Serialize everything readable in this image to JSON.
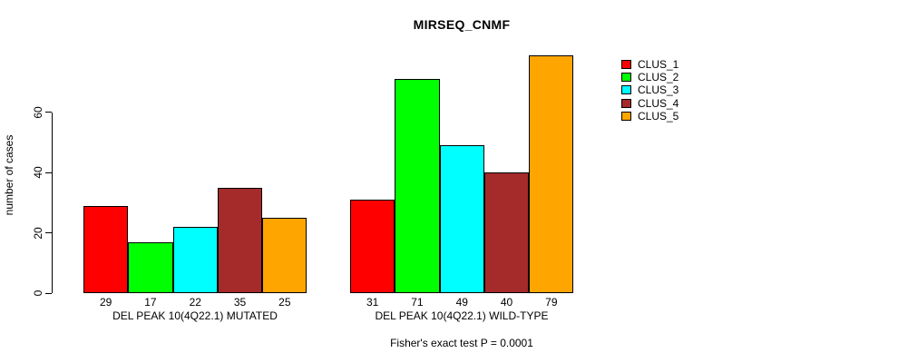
{
  "title": "MIRSEQ_CNMF",
  "chart_data": {
    "type": "bar",
    "title": "MIRSEQ_CNMF",
    "xlabel": "",
    "ylabel": "number of cases",
    "yticks": [
      0,
      20,
      40,
      60
    ],
    "ylim": [
      0,
      79
    ],
    "grid": false,
    "legend_position": "right",
    "categories": [
      "DEL PEAK 10(4Q22.1) MUTATED",
      "DEL PEAK 10(4Q22.1) WILD-TYPE"
    ],
    "series": [
      {
        "name": "CLUS_1",
        "color": "#FF0000",
        "values": [
          29,
          31
        ]
      },
      {
        "name": "CLUS_2",
        "color": "#00FF00",
        "values": [
          17,
          71
        ]
      },
      {
        "name": "CLUS_3",
        "color": "#00FFFF",
        "values": [
          22,
          49
        ]
      },
      {
        "name": "CLUS_4",
        "color": "#A52A2A",
        "values": [
          35,
          40
        ]
      },
      {
        "name": "CLUS_5",
        "color": "#FFA500",
        "values": [
          25,
          79
        ]
      }
    ],
    "groups": [
      {
        "label": "DEL PEAK 10(4Q22.1) MUTATED",
        "values": [
          29,
          17,
          22,
          35,
          25
        ]
      },
      {
        "label": "DEL PEAK 10(4Q22.1) WILD-TYPE",
        "values": [
          31,
          71,
          49,
          40,
          79
        ]
      }
    ],
    "bar_value_labels_shown": true,
    "annotation": "Fisher's exact test P = 0.0001"
  },
  "legend": {
    "items": [
      {
        "label": "CLUS_1",
        "color": "#FF0000"
      },
      {
        "label": "CLUS_2",
        "color": "#00FF00"
      },
      {
        "label": "CLUS_3",
        "color": "#00FFFF"
      },
      {
        "label": "CLUS_4",
        "color": "#A52A2A"
      },
      {
        "label": "CLUS_5",
        "color": "#FFA500"
      }
    ]
  },
  "colors": {
    "background": "#FFFFFF",
    "axis": "#000000",
    "text": "#000000"
  }
}
